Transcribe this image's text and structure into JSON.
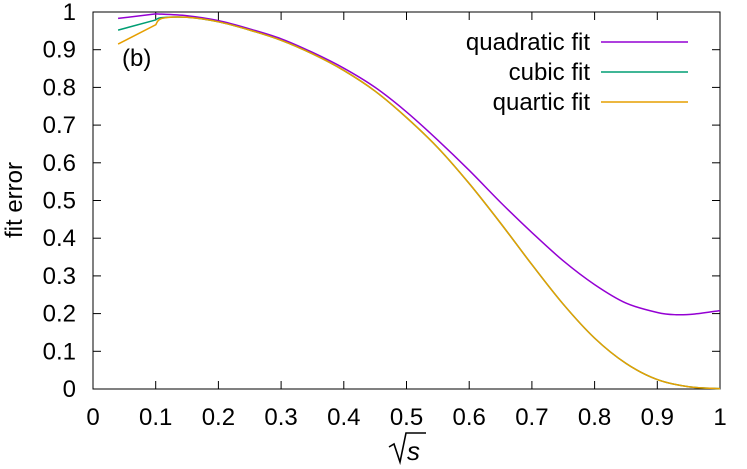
{
  "chart_data": {
    "type": "line",
    "panel_label": "(b)",
    "xlabel": "s",
    "ylabel": "fit error",
    "xlim": [
      0,
      1
    ],
    "ylim": [
      0,
      1
    ],
    "grid": false,
    "legend_placement": "top-right",
    "x_ticks": [
      "0",
      "0.1",
      "0.2",
      "0.3",
      "0.4",
      "0.5",
      "0.6",
      "0.7",
      "0.8",
      "0.9",
      "1"
    ],
    "y_ticks": [
      "0",
      "0.1",
      "0.2",
      "0.3",
      "0.4",
      "0.5",
      "0.6",
      "0.7",
      "0.8",
      "0.9",
      "1"
    ],
    "series": [
      {
        "name": "quadratic fit",
        "color": "#9400d3",
        "x": [
          0.04,
          0.1,
          0.15,
          0.2,
          0.25,
          0.3,
          0.35,
          0.4,
          0.45,
          0.5,
          0.55,
          0.6,
          0.65,
          0.7,
          0.75,
          0.8,
          0.85,
          0.9,
          0.93,
          0.96,
          1.0
        ],
        "y": [
          0.983,
          0.995,
          0.99,
          0.977,
          0.955,
          0.929,
          0.893,
          0.851,
          0.8,
          0.735,
          0.66,
          0.58,
          0.495,
          0.415,
          0.34,
          0.277,
          0.228,
          0.203,
          0.197,
          0.199,
          0.208
        ]
      },
      {
        "name": "cubic fit",
        "color": "#009e73",
        "x": [
          0.04,
          0.1,
          0.11,
          0.15,
          0.2,
          0.25,
          0.3,
          0.35,
          0.4,
          0.45,
          0.5,
          0.55,
          0.6,
          0.65,
          0.7,
          0.75,
          0.8,
          0.85,
          0.9,
          0.95,
          1.0
        ],
        "y": [
          0.952,
          0.979,
          0.985,
          0.986,
          0.974,
          0.952,
          0.925,
          0.889,
          0.845,
          0.79,
          0.72,
          0.64,
          0.545,
          0.44,
          0.33,
          0.225,
          0.135,
          0.068,
          0.025,
          0.006,
          0.001
        ]
      },
      {
        "name": "quartic fit",
        "color": "#e69f00",
        "x": [
          0.04,
          0.1,
          0.11,
          0.15,
          0.2,
          0.25,
          0.3,
          0.35,
          0.4,
          0.45,
          0.5,
          0.55,
          0.6,
          0.65,
          0.7,
          0.75,
          0.8,
          0.85,
          0.9,
          0.95,
          1.0
        ],
        "y": [
          0.915,
          0.966,
          0.983,
          0.986,
          0.974,
          0.952,
          0.925,
          0.889,
          0.845,
          0.79,
          0.72,
          0.64,
          0.545,
          0.44,
          0.33,
          0.225,
          0.135,
          0.068,
          0.025,
          0.006,
          0.001
        ]
      }
    ]
  }
}
